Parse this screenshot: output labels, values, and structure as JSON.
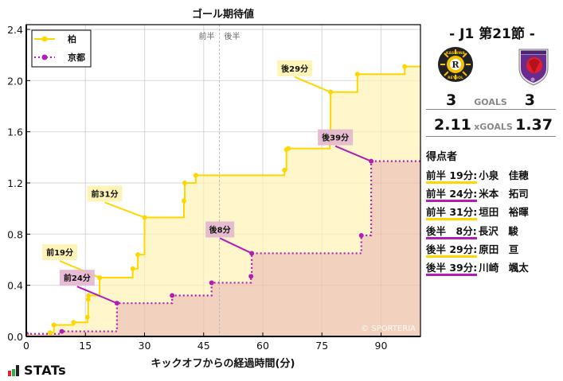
{
  "chart_data": {
    "type": "line",
    "subtype": "step",
    "title": "ゴール期待値",
    "xlabel": "キックオフからの経過時間(分)",
    "ylabel": "",
    "xlim": [
      0,
      100
    ],
    "ylim": [
      0,
      2.4
    ],
    "xticks": [
      0,
      15,
      30,
      45,
      60,
      75,
      90
    ],
    "yticks": [
      0.0,
      0.4,
      0.8,
      1.2,
      1.6,
      2.0,
      2.4
    ],
    "ytick_labels": [
      "0.0",
      "0.4",
      "0.8",
      "1.2",
      "1.6",
      "2.0",
      "2.4"
    ],
    "grid": true,
    "half_divider_x": 49,
    "half_labels": [
      "前半",
      "後半"
    ],
    "legend_position": "upper-left",
    "watermark": "© SPORTERIA",
    "series": [
      {
        "name": "柏",
        "color": "#FFD700",
        "fill": "#FFF5C8",
        "line_style": "solid",
        "points": [
          [
            0,
            0.0
          ],
          [
            6,
            0.03
          ],
          [
            7,
            0.09
          ],
          [
            12,
            0.11
          ],
          [
            15.5,
            0.15
          ],
          [
            15.7,
            0.29
          ],
          [
            15.8,
            0.32
          ],
          [
            18.6,
            0.46
          ],
          [
            27,
            0.53
          ],
          [
            28.3,
            0.64
          ],
          [
            30,
            0.93
          ],
          [
            40,
            1.06
          ],
          [
            40.2,
            1.2
          ],
          [
            43,
            1.26
          ],
          [
            65.5,
            1.3
          ],
          [
            66,
            1.46
          ],
          [
            66.5,
            1.47
          ],
          [
            77,
            1.53
          ],
          [
            77.2,
            1.91
          ],
          [
            84,
            2.05
          ],
          [
            96,
            2.11
          ],
          [
            100,
            2.11
          ]
        ],
        "final_xg": 2.11
      },
      {
        "name": "京都",
        "color": "#B01EB4",
        "fill": "#F2D2BE",
        "line_style": "dotted",
        "points": [
          [
            0,
            0.02
          ],
          [
            9,
            0.04
          ],
          [
            23,
            0.26
          ],
          [
            37,
            0.32
          ],
          [
            47,
            0.42
          ],
          [
            57,
            0.47
          ],
          [
            57.2,
            0.65
          ],
          [
            85,
            0.79
          ],
          [
            87.5,
            1.37
          ],
          [
            100,
            1.37
          ]
        ],
        "final_xg": 1.37
      }
    ],
    "annotations": [
      {
        "label": "前19分",
        "team": "柏",
        "x": 18.6,
        "y": 0.46
      },
      {
        "label": "前24分",
        "team": "京都",
        "x": 23,
        "y": 0.26
      },
      {
        "label": "前31分",
        "team": "柏",
        "x": 30,
        "y": 0.93
      },
      {
        "label": "後8分",
        "team": "京都",
        "x": 57.2,
        "y": 0.65
      },
      {
        "label": "後29分",
        "team": "柏",
        "x": 77.2,
        "y": 1.91
      },
      {
        "label": "後39分",
        "team": "京都",
        "x": 87.5,
        "y": 1.37
      }
    ]
  },
  "match": {
    "round": "- J1 第21節 -",
    "home_team": "柏",
    "away_team": "京都",
    "home_logo": "kashiwa-reysol-crest",
    "away_logo": "kyoto-sanga-crest",
    "goals_label": "GOALS",
    "home_goals": "3",
    "away_goals": "3",
    "xgoals_label": "xGOALS",
    "home_xg": "2.11",
    "away_xg": "1.37"
  },
  "scorers": {
    "title": "得点者",
    "items": [
      {
        "when": "前半 19分:",
        "name": "小泉　佳穂",
        "team": "home"
      },
      {
        "when": "前半 24分:",
        "name": "米本　拓司",
        "team": "away"
      },
      {
        "when": "前半 31分:",
        "name": "垣田　裕暉",
        "team": "home"
      },
      {
        "when": "後半　8分:",
        "name": "長沢　駿",
        "team": "away"
      },
      {
        "when": "後半 29分:",
        "name": "原田　亘",
        "team": "home"
      },
      {
        "when": "後半 39分:",
        "name": "川崎　颯太",
        "team": "away"
      }
    ]
  },
  "branding": {
    "stats_logo": "STATs"
  },
  "colors": {
    "home": "#FFD700",
    "away": "#B01EB4",
    "home_fill": "#FFF5C8",
    "away_fill": "#F2D2BE",
    "home_annot_bg": "#FFF3B0",
    "away_annot_bg": "#E3B6CF"
  }
}
